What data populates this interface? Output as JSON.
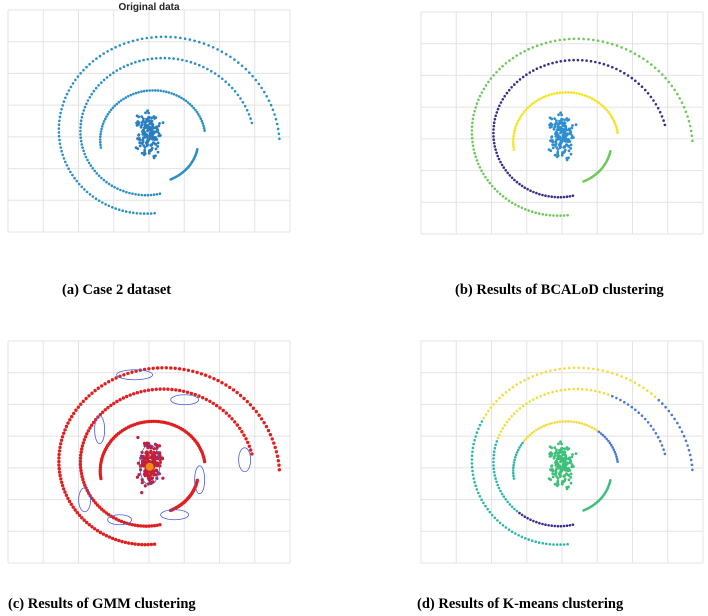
{
  "figure": {
    "captions": {
      "a": "(a) Case 2 dataset",
      "b": "(b) Results of BCALoD clustering",
      "c": "(c) Results of GMM clustering",
      "d": "(d) Results of K-means clustering"
    }
  },
  "chart_data": [
    {
      "id": "a",
      "type": "scatter",
      "title": "Original data",
      "grid": true,
      "xlim": [
        -10,
        10
      ],
      "ylim": [
        -10,
        10
      ],
      "series": [
        {
          "values_desc": "outer spiral arm",
          "color": "#2a8fc6",
          "arc": {
            "cx": 0,
            "cy": 0,
            "r_start": 9.6,
            "r_end": 6.8,
            "theta_start_deg": 0,
            "theta_end_deg": 260
          }
        },
        {
          "values_desc": "middle spiral arm",
          "color": "#2a8fc6",
          "arc": {
            "cx": 0,
            "cy": 0,
            "r_start": 8.2,
            "r_end": 5.2,
            "theta_start_deg": 8,
            "theta_end_deg": 270
          }
        },
        {
          "values_desc": "inner arc",
          "color": "#2a8fc6",
          "arc": {
            "cx": 0,
            "cy": 0,
            "r_start": 4.2,
            "r_end": 3.8,
            "theta_start_deg": 200,
            "theta_end_deg": 10
          }
        },
        {
          "values_desc": "lower arc",
          "color": "#2a8fc6",
          "arc": {
            "cx": 0,
            "cy": 0,
            "r_start": 3.9,
            "r_end": 3.7,
            "theta_start_deg": 300,
            "theta_end_deg": 10
          }
        },
        {
          "values_desc": "central cluster",
          "color": "#2a8fc6",
          "cluster": {
            "cx": 0,
            "cy": 0,
            "sx": 0.7,
            "sy": 1.3
          }
        }
      ]
    },
    {
      "id": "b",
      "type": "scatter",
      "title": "",
      "grid": true,
      "series": [
        {
          "color": "#6ec85a"
        },
        {
          "color": "#3b2d8c"
        },
        {
          "color": "#f5e21a"
        },
        {
          "color": "#3b2d8c"
        },
        {
          "color": "#2f8fd0"
        }
      ]
    },
    {
      "id": "c",
      "type": "scatter",
      "title": "",
      "grid": true,
      "series": [
        {
          "color": "#e02020"
        },
        {
          "color": "#e02020"
        },
        {
          "color": "#e02020"
        },
        {
          "color": "#e02020"
        },
        {
          "color": "#c0203a"
        }
      ],
      "overlay_color": "#4a5adc",
      "center_color": "#f08a10"
    },
    {
      "id": "d",
      "type": "scatter",
      "title": "",
      "grid": true,
      "series": [
        {
          "color": "#f2dc3e"
        },
        {
          "color": "#f2dc3e"
        },
        {
          "color": "#f5e21a"
        },
        {
          "color": "#3b2d8c"
        },
        {
          "color": "#3ec07a"
        }
      ]
    }
  ]
}
